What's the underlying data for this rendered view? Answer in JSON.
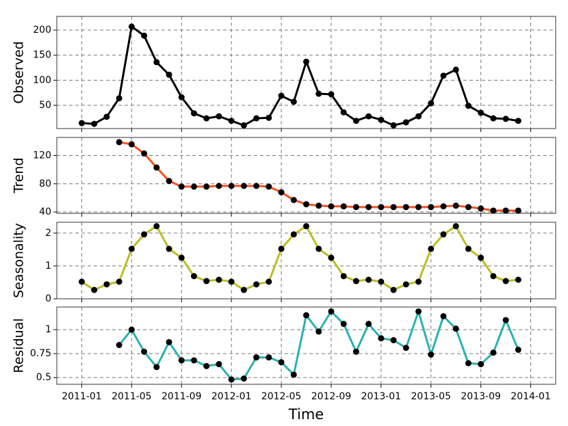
{
  "chart_data": [
    {
      "type": "line",
      "y_label": "Observed",
      "color": "#000000",
      "x": [
        "2011-01",
        "2011-02",
        "2011-03",
        "2011-04",
        "2011-05",
        "2011-06",
        "2011-07",
        "2011-08",
        "2011-09",
        "2011-10",
        "2011-11",
        "2011-12",
        "2012-01",
        "2012-02",
        "2012-03",
        "2012-04",
        "2012-05",
        "2012-06",
        "2012-07",
        "2012-08",
        "2012-09",
        "2012-10",
        "2012-11",
        "2012-12",
        "2013-01",
        "2013-02",
        "2013-03",
        "2013-04",
        "2013-05",
        "2013-06",
        "2013-07",
        "2013-08",
        "2013-09",
        "2013-10",
        "2013-11",
        "2013-12"
      ],
      "values": [
        14.5,
        13,
        27,
        64,
        207,
        189,
        136,
        111,
        66,
        34,
        24,
        28,
        19,
        10,
        24,
        25,
        69,
        57,
        137,
        73,
        72,
        36,
        19,
        28,
        21,
        10,
        16,
        28,
        54,
        109,
        121,
        49,
        35,
        24,
        23,
        19
      ],
      "xlim": [
        "2010-11",
        "2014-03"
      ],
      "xticks": [
        "2011-01",
        "2011-05",
        "2011-09",
        "2012-01",
        "2012-05",
        "2012-09",
        "2013-01",
        "2013-05",
        "2013-09",
        "2014-01"
      ],
      "ylim": [
        3.6,
        227.3
      ],
      "yticks": [
        50,
        100,
        150,
        200
      ],
      "grid": true
    },
    {
      "type": "line",
      "y_label": "Trend",
      "color": "#f4511e",
      "x": [
        "2011-01",
        "2011-02",
        "2011-03",
        "2011-04",
        "2011-05",
        "2011-06",
        "2011-07",
        "2011-08",
        "2011-09",
        "2011-10",
        "2011-11",
        "2011-12",
        "2012-01",
        "2012-02",
        "2012-03",
        "2012-04",
        "2012-05",
        "2012-06",
        "2012-07",
        "2012-08",
        "2012-09",
        "2012-10",
        "2012-11",
        "2012-12",
        "2013-01",
        "2013-02",
        "2013-03",
        "2013-04",
        "2013-05",
        "2013-06",
        "2013-07",
        "2013-08",
        "2013-09",
        "2013-10",
        "2013-11",
        "2013-12"
      ],
      "values": [
        null,
        null,
        null,
        139,
        136,
        123,
        103,
        84,
        76,
        76,
        76,
        77,
        77,
        77,
        77,
        76,
        68,
        57,
        51,
        49,
        48,
        48,
        47,
        47,
        47,
        47,
        47,
        47,
        47,
        48,
        49,
        47,
        45,
        42,
        42,
        42
      ],
      "xlim": [
        "2010-11",
        "2014-03"
      ],
      "xticks": [
        "2011-01",
        "2011-05",
        "2011-09",
        "2012-01",
        "2012-05",
        "2012-09",
        "2013-01",
        "2013-05",
        "2013-09",
        "2014-01"
      ],
      "ylim": [
        38.1,
        145.7
      ],
      "yticks": [
        40,
        80,
        120
      ],
      "grid": true
    },
    {
      "type": "line",
      "y_label": "Seasonality",
      "color": "#bcbd22",
      "x": [
        "2011-01",
        "2011-02",
        "2011-03",
        "2011-04",
        "2011-05",
        "2011-06",
        "2011-07",
        "2011-08",
        "2011-09",
        "2011-10",
        "2011-11",
        "2011-12",
        "2012-01",
        "2012-02",
        "2012-03",
        "2012-04",
        "2012-05",
        "2012-06",
        "2012-07",
        "2012-08",
        "2012-09",
        "2012-10",
        "2012-11",
        "2012-12",
        "2013-01",
        "2013-02",
        "2013-03",
        "2013-04",
        "2013-05",
        "2013-06",
        "2013-07",
        "2013-08",
        "2013-09",
        "2013-10",
        "2013-11",
        "2013-12"
      ],
      "values": [
        0.52,
        0.27,
        0.44,
        0.52,
        1.52,
        1.96,
        2.21,
        1.52,
        1.25,
        0.69,
        0.54,
        0.58,
        0.52,
        0.27,
        0.44,
        0.52,
        1.52,
        1.96,
        2.21,
        1.52,
        1.25,
        0.69,
        0.54,
        0.58,
        0.52,
        0.27,
        0.44,
        0.52,
        1.52,
        1.96,
        2.21,
        1.52,
        1.25,
        0.69,
        0.54,
        0.58
      ],
      "xlim": [
        "2010-11",
        "2014-03"
      ],
      "xticks": [
        "2011-01",
        "2011-05",
        "2011-09",
        "2012-01",
        "2012-05",
        "2012-09",
        "2013-01",
        "2013-05",
        "2013-09",
        "2014-01"
      ],
      "ylim": [
        0,
        2.33
      ],
      "yticks": [
        0,
        1,
        2
      ],
      "grid": true
    },
    {
      "type": "line",
      "y_label": "Residual",
      "x_label": "Time",
      "color": "#2ab0b0",
      "show_xtick_labels": true,
      "x": [
        "2011-01",
        "2011-02",
        "2011-03",
        "2011-04",
        "2011-05",
        "2011-06",
        "2011-07",
        "2011-08",
        "2011-09",
        "2011-10",
        "2011-11",
        "2011-12",
        "2012-01",
        "2012-02",
        "2012-03",
        "2012-04",
        "2012-05",
        "2012-06",
        "2012-07",
        "2012-08",
        "2012-09",
        "2012-10",
        "2012-11",
        "2012-12",
        "2013-01",
        "2013-02",
        "2013-03",
        "2013-04",
        "2013-05",
        "2013-06",
        "2013-07",
        "2013-08",
        "2013-09",
        "2013-10",
        "2013-11",
        "2013-12"
      ],
      "values": [
        null,
        null,
        null,
        0.84,
        1.0,
        0.77,
        0.61,
        0.87,
        0.68,
        0.68,
        0.62,
        0.64,
        0.48,
        0.49,
        0.71,
        0.71,
        0.66,
        0.53,
        1.15,
        0.98,
        1.19,
        1.06,
        0.77,
        1.06,
        0.91,
        0.89,
        0.81,
        1.19,
        0.74,
        1.14,
        1.01,
        0.65,
        0.64,
        0.76,
        1.1,
        0.79
      ],
      "xlim": [
        "2010-11",
        "2014-03"
      ],
      "xticks": [
        "2011-01",
        "2011-05",
        "2011-09",
        "2012-01",
        "2012-05",
        "2012-09",
        "2013-01",
        "2013-05",
        "2013-09",
        "2014-01"
      ],
      "ylim": [
        0.43,
        1.236
      ],
      "yticks": [
        0.5,
        0.75,
        1
      ],
      "grid": true
    }
  ]
}
